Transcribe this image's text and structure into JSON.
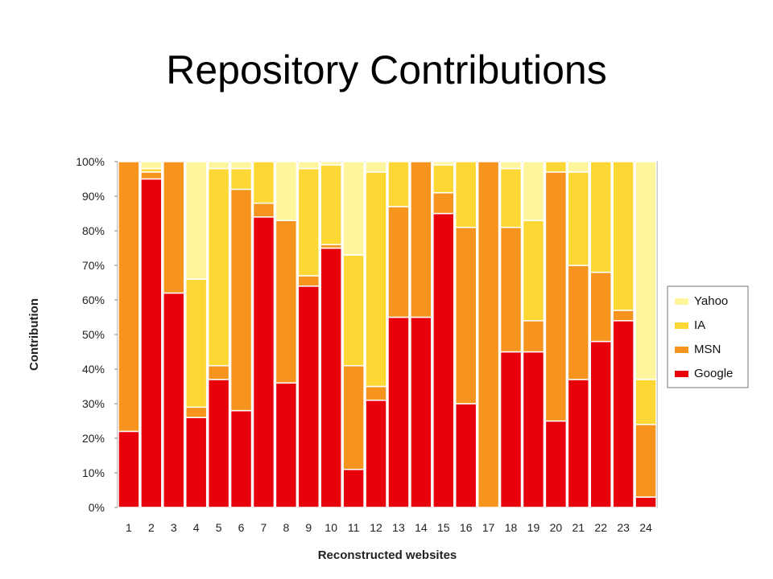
{
  "slide": {
    "title": "Repository Contributions"
  },
  "chart_data": {
    "type": "bar",
    "stacked": true,
    "normalized": true,
    "xlabel": "Reconstructed websites",
    "ylabel": "Contribution",
    "ylim": [
      0,
      100
    ],
    "y_ticks": [
      "0%",
      "10%",
      "20%",
      "30%",
      "40%",
      "50%",
      "60%",
      "70%",
      "80%",
      "90%",
      "100%"
    ],
    "categories": [
      "1",
      "2",
      "3",
      "4",
      "5",
      "6",
      "7",
      "8",
      "9",
      "10",
      "11",
      "12",
      "13",
      "14",
      "15",
      "16",
      "17",
      "18",
      "19",
      "20",
      "21",
      "22",
      "23",
      "24"
    ],
    "legend_position": "right",
    "grid": false,
    "series": [
      {
        "name": "Google",
        "color": "#e8000b",
        "values": [
          22,
          95,
          62,
          26,
          37,
          28,
          84,
          36,
          64,
          75,
          11,
          31,
          55,
          55,
          85,
          30,
          0,
          45,
          45,
          25,
          37,
          48,
          54,
          3
        ]
      },
      {
        "name": "MSN",
        "color": "#f7941d",
        "values": [
          78,
          2,
          38,
          3,
          4,
          64,
          4,
          47,
          3,
          1,
          30,
          4,
          32,
          45,
          6,
          51,
          100,
          36,
          9,
          72,
          33,
          20,
          3,
          21
        ]
      },
      {
        "name": "IA",
        "color": "#fdd835",
        "values": [
          0,
          1,
          0,
          37,
          57,
          6,
          12,
          0,
          31,
          23,
          32,
          62,
          13,
          0,
          8,
          19,
          0,
          17,
          29,
          3,
          27,
          32,
          43,
          13
        ]
      },
      {
        "name": "Yahoo",
        "color": "#fff59d",
        "values": [
          0,
          2,
          0,
          34,
          2,
          2,
          0,
          17,
          2,
          1,
          27,
          3,
          0,
          0,
          1,
          0,
          0,
          2,
          17,
          0,
          3,
          0,
          0,
          63
        ]
      }
    ]
  }
}
